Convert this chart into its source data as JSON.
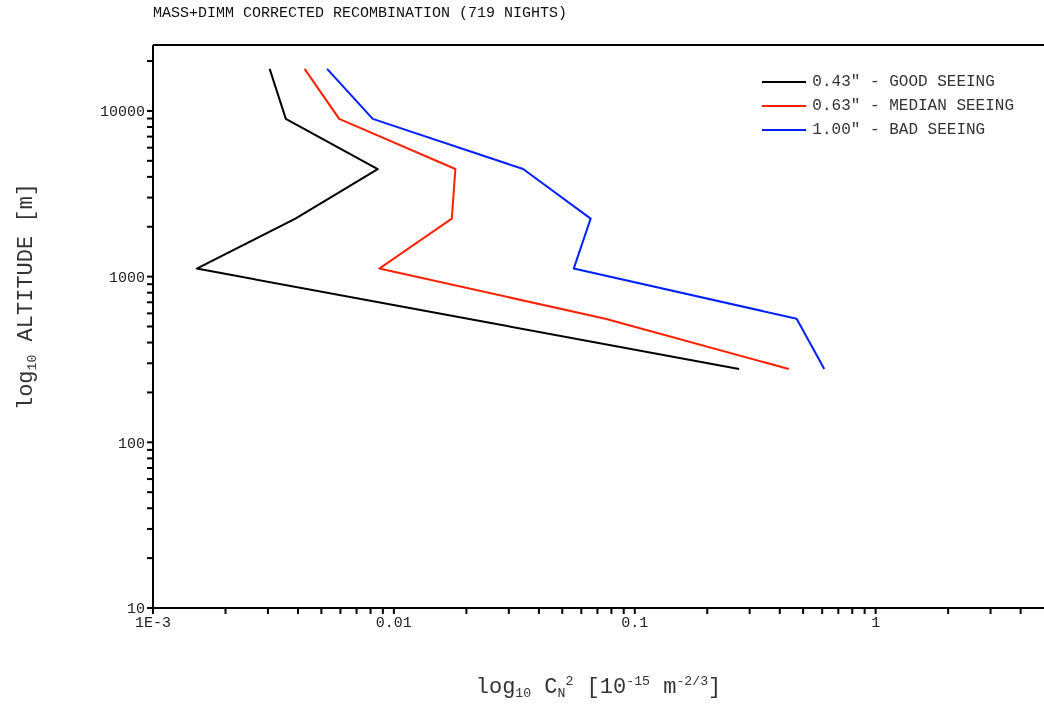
{
  "chart_data": {
    "type": "line",
    "title": "MASS+DIMM CORRECTED RECOMBINATION (719 NIGHTS)",
    "xlabel": "log$_{10}$ C$_{N}$$^{2}$ [10$^{-15}$ m$^{-2/3}$]",
    "ylabel": "log$_{10}$ ALTITUDE [m]",
    "log": "xy",
    "legend": "top right",
    "marker": "none",
    "line_style": "solid",
    "xlim": [
      0.001,
      5
    ],
    "ylim": [
      10,
      25000
    ],
    "xticks": [
      {
        "value": 0.001,
        "label": "1E-3"
      },
      {
        "value": 0.002,
        "label": null
      },
      {
        "value": 0.003,
        "label": null
      },
      {
        "value": 0.004,
        "label": null
      },
      {
        "value": 0.005,
        "label": null
      },
      {
        "value": 0.006,
        "label": null
      },
      {
        "value": 0.007,
        "label": null
      },
      {
        "value": 0.008,
        "label": null
      },
      {
        "value": 0.009,
        "label": null
      },
      {
        "value": 0.01,
        "label": "0.01"
      },
      {
        "value": 0.02,
        "label": null
      },
      {
        "value": 0.03,
        "label": null
      },
      {
        "value": 0.04,
        "label": null
      },
      {
        "value": 0.05,
        "label": null
      },
      {
        "value": 0.06,
        "label": null
      },
      {
        "value": 0.07,
        "label": null
      },
      {
        "value": 0.08,
        "label": null
      },
      {
        "value": 0.09,
        "label": null
      },
      {
        "value": 0.1,
        "label": "0.1"
      },
      {
        "value": 0.2,
        "label": null
      },
      {
        "value": 0.3,
        "label": null
      },
      {
        "value": 0.4,
        "label": null
      },
      {
        "value": 0.5,
        "label": null
      },
      {
        "value": 0.6,
        "label": null
      },
      {
        "value": 0.7,
        "label": null
      },
      {
        "value": 0.8,
        "label": null
      },
      {
        "value": 0.9,
        "label": null
      },
      1,
      {
        "value": 2,
        "label": null
      },
      {
        "value": 3,
        "label": null
      },
      {
        "value": 4,
        "label": null
      }
    ],
    "yticks": [
      10,
      {
        "value": 20,
        "label": null
      },
      {
        "value": 30,
        "label": null
      },
      {
        "value": 40,
        "label": null
      },
      {
        "value": 50,
        "label": null
      },
      {
        "value": 60,
        "label": null
      },
      {
        "value": 70,
        "label": null
      },
      {
        "value": 80,
        "label": null
      },
      {
        "value": 90,
        "label": null
      },
      100,
      {
        "value": 200,
        "label": null
      },
      {
        "value": 300,
        "label": null
      },
      {
        "value": 400,
        "label": null
      },
      {
        "value": 500,
        "label": null
      },
      {
        "value": 600,
        "label": null
      },
      {
        "value": 700,
        "label": null
      },
      {
        "value": 800,
        "label": null
      },
      {
        "value": 900,
        "label": null
      },
      1000,
      {
        "value": 2000,
        "label": null
      },
      {
        "value": 3000,
        "label": null
      },
      {
        "value": 4000,
        "label": null
      },
      {
        "value": 5000,
        "label": null
      },
      {
        "value": 6000,
        "label": null
      },
      {
        "value": 7000,
        "label": null
      },
      {
        "value": 8000,
        "label": null
      },
      {
        "value": 9000,
        "label": null
      },
      10000,
      {
        "value": 20000,
        "label": null
      }
    ],
    "series": [
      {
        "name": "0.43\" - GOOD SEEING",
        "color": "#000000",
        "x": [
          0.00305,
          0.00356,
          0.00857,
          0.0039,
          0.00152,
          0.0203,
          0.271
        ],
        "values": [
          17950,
          8950,
          4460,
          2240,
          1118,
          557,
          277
        ]
      },
      {
        "name": "0.63\" - MEDIAN SEEING",
        "color": "#ff2000",
        "x": [
          0.00426,
          0.00593,
          0.018,
          0.0174,
          0.0087,
          0.0755,
          0.436
        ],
        "values": [
          17950,
          8950,
          4460,
          2240,
          1118,
          557,
          277
        ]
      },
      {
        "name": "1.00\" - BAD SEEING",
        "color": "#0020ff",
        "x": [
          0.00528,
          0.00817,
          0.0344,
          0.0656,
          0.0558,
          0.47,
          0.612
        ],
        "values": [
          17950,
          8950,
          4460,
          2240,
          1118,
          557,
          277
        ]
      }
    ]
  }
}
